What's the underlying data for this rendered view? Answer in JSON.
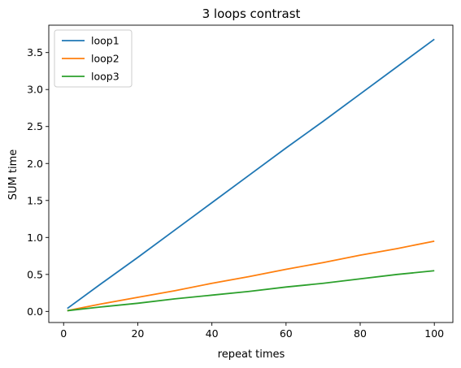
{
  "chart_data": {
    "type": "line",
    "title": "3 loops contrast",
    "xlabel": "repeat times",
    "ylabel": "SUM time",
    "xlim": [
      -4,
      105
    ],
    "ylim": [
      -0.15,
      3.87
    ],
    "xticks": [
      0,
      20,
      40,
      60,
      80,
      100
    ],
    "yticks": [
      0.0,
      0.5,
      1.0,
      1.5,
      2.0,
      2.5,
      3.0,
      3.5
    ],
    "xtick_labels": [
      "0",
      "20",
      "40",
      "60",
      "80",
      "100"
    ],
    "ytick_labels": [
      "0.0",
      "0.5",
      "1.0",
      "1.5",
      "2.0",
      "2.5",
      "3.0",
      "3.5"
    ],
    "grid": false,
    "legend_position": "top-left",
    "series": [
      {
        "name": "loop1",
        "color": "#1f77b4",
        "x": [
          1,
          10,
          20,
          30,
          40,
          50,
          60,
          70,
          80,
          90,
          100
        ],
        "y": [
          0.04,
          0.37,
          0.73,
          1.1,
          1.47,
          1.84,
          2.21,
          2.57,
          2.94,
          3.31,
          3.68
        ]
      },
      {
        "name": "loop2",
        "color": "#ff7f0e",
        "x": [
          1,
          10,
          20,
          30,
          40,
          50,
          60,
          70,
          80,
          90,
          100
        ],
        "y": [
          0.01,
          0.1,
          0.19,
          0.28,
          0.38,
          0.47,
          0.57,
          0.66,
          0.76,
          0.85,
          0.95
        ]
      },
      {
        "name": "loop3",
        "color": "#2ca02c",
        "x": [
          1,
          10,
          20,
          30,
          40,
          50,
          60,
          70,
          80,
          90,
          100
        ],
        "y": [
          0.01,
          0.06,
          0.11,
          0.17,
          0.22,
          0.27,
          0.33,
          0.38,
          0.44,
          0.5,
          0.55
        ]
      }
    ]
  }
}
